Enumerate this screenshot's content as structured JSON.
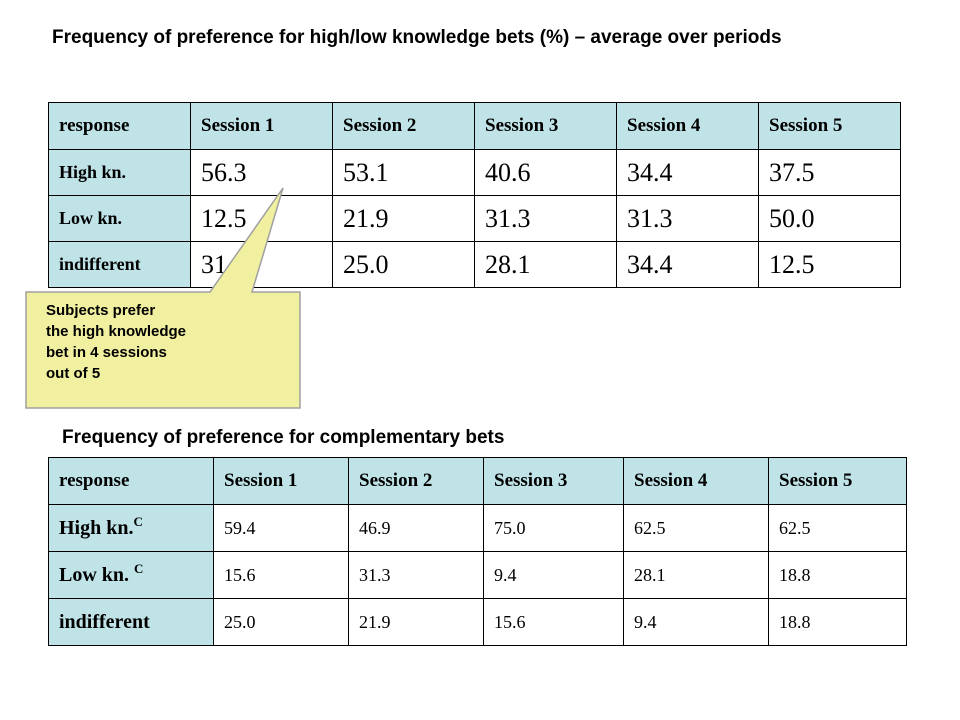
{
  "heading1": "Frequency of preference for high/low knowledge bets (%) – average over periods",
  "heading2": "Frequency of preference for complementary bets",
  "table1": {
    "headers": [
      "response",
      "Session 1",
      "Session 2",
      "Session 3",
      "Session 4",
      "Session 5"
    ],
    "rows": [
      {
        "label": "High kn.",
        "values": [
          "56.3",
          "53.1",
          "40.6",
          "34.4",
          "37.5"
        ]
      },
      {
        "label": "Low kn.",
        "values": [
          "12.5",
          "21.9",
          "31.3",
          "31.3",
          "50.0"
        ]
      },
      {
        "label": "indifferent",
        "values": [
          "31.3",
          "25.0",
          "28.1",
          "34.4",
          "12.5"
        ]
      }
    ]
  },
  "table2": {
    "headers": [
      "response",
      "Session 1",
      "Session 2",
      "Session 3",
      "Session 4",
      "Session 5"
    ],
    "rows": [
      {
        "label": "High kn.",
        "superscript": "C",
        "values": [
          "59.4",
          "46.9",
          "75.0",
          "62.5",
          "62.5"
        ]
      },
      {
        "label": "Low kn. ",
        "superscript": "C",
        "values": [
          "15.6",
          "31.3",
          "9.4",
          "28.1",
          "18.8"
        ]
      },
      {
        "label": "indifferent",
        "values": [
          "25.0",
          "21.9",
          "15.6",
          "9.4",
          "18.8"
        ]
      }
    ]
  },
  "callout": {
    "lines": [
      "Subjects prefer",
      "the high knowledge",
      "bet in 4 sessions",
      "out of 5"
    ],
    "fill_color": "#f0f0a0",
    "stroke_color": "#a0a0a0"
  },
  "colors": {
    "header_fill": "#bfe3e7",
    "cell_fill": "#ffffff"
  }
}
